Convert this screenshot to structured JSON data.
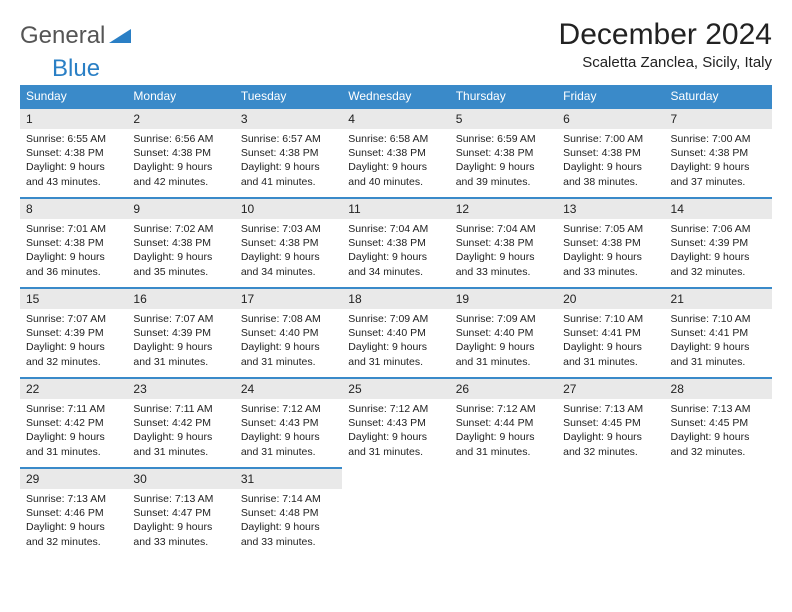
{
  "logo": {
    "part1": "General",
    "part2": "Blue"
  },
  "title": "December 2024",
  "location": "Scaletta Zanclea, Sicily, Italy",
  "colors": {
    "header_bg": "#3a8ac9",
    "header_text": "#ffffff",
    "daynum_bg": "#e9e9e9",
    "daynum_border": "#3a8ac9",
    "body_text": "#222222",
    "logo_blue": "#2a7fc5"
  },
  "day_headers": [
    "Sunday",
    "Monday",
    "Tuesday",
    "Wednesday",
    "Thursday",
    "Friday",
    "Saturday"
  ],
  "weeks": [
    [
      {
        "n": "1",
        "sr": "Sunrise: 6:55 AM",
        "ss": "Sunset: 4:38 PM",
        "dl1": "Daylight: 9 hours",
        "dl2": "and 43 minutes."
      },
      {
        "n": "2",
        "sr": "Sunrise: 6:56 AM",
        "ss": "Sunset: 4:38 PM",
        "dl1": "Daylight: 9 hours",
        "dl2": "and 42 minutes."
      },
      {
        "n": "3",
        "sr": "Sunrise: 6:57 AM",
        "ss": "Sunset: 4:38 PM",
        "dl1": "Daylight: 9 hours",
        "dl2": "and 41 minutes."
      },
      {
        "n": "4",
        "sr": "Sunrise: 6:58 AM",
        "ss": "Sunset: 4:38 PM",
        "dl1": "Daylight: 9 hours",
        "dl2": "and 40 minutes."
      },
      {
        "n": "5",
        "sr": "Sunrise: 6:59 AM",
        "ss": "Sunset: 4:38 PM",
        "dl1": "Daylight: 9 hours",
        "dl2": "and 39 minutes."
      },
      {
        "n": "6",
        "sr": "Sunrise: 7:00 AM",
        "ss": "Sunset: 4:38 PM",
        "dl1": "Daylight: 9 hours",
        "dl2": "and 38 minutes."
      },
      {
        "n": "7",
        "sr": "Sunrise: 7:00 AM",
        "ss": "Sunset: 4:38 PM",
        "dl1": "Daylight: 9 hours",
        "dl2": "and 37 minutes."
      }
    ],
    [
      {
        "n": "8",
        "sr": "Sunrise: 7:01 AM",
        "ss": "Sunset: 4:38 PM",
        "dl1": "Daylight: 9 hours",
        "dl2": "and 36 minutes."
      },
      {
        "n": "9",
        "sr": "Sunrise: 7:02 AM",
        "ss": "Sunset: 4:38 PM",
        "dl1": "Daylight: 9 hours",
        "dl2": "and 35 minutes."
      },
      {
        "n": "10",
        "sr": "Sunrise: 7:03 AM",
        "ss": "Sunset: 4:38 PM",
        "dl1": "Daylight: 9 hours",
        "dl2": "and 34 minutes."
      },
      {
        "n": "11",
        "sr": "Sunrise: 7:04 AM",
        "ss": "Sunset: 4:38 PM",
        "dl1": "Daylight: 9 hours",
        "dl2": "and 34 minutes."
      },
      {
        "n": "12",
        "sr": "Sunrise: 7:04 AM",
        "ss": "Sunset: 4:38 PM",
        "dl1": "Daylight: 9 hours",
        "dl2": "and 33 minutes."
      },
      {
        "n": "13",
        "sr": "Sunrise: 7:05 AM",
        "ss": "Sunset: 4:38 PM",
        "dl1": "Daylight: 9 hours",
        "dl2": "and 33 minutes."
      },
      {
        "n": "14",
        "sr": "Sunrise: 7:06 AM",
        "ss": "Sunset: 4:39 PM",
        "dl1": "Daylight: 9 hours",
        "dl2": "and 32 minutes."
      }
    ],
    [
      {
        "n": "15",
        "sr": "Sunrise: 7:07 AM",
        "ss": "Sunset: 4:39 PM",
        "dl1": "Daylight: 9 hours",
        "dl2": "and 32 minutes."
      },
      {
        "n": "16",
        "sr": "Sunrise: 7:07 AM",
        "ss": "Sunset: 4:39 PM",
        "dl1": "Daylight: 9 hours",
        "dl2": "and 31 minutes."
      },
      {
        "n": "17",
        "sr": "Sunrise: 7:08 AM",
        "ss": "Sunset: 4:40 PM",
        "dl1": "Daylight: 9 hours",
        "dl2": "and 31 minutes."
      },
      {
        "n": "18",
        "sr": "Sunrise: 7:09 AM",
        "ss": "Sunset: 4:40 PM",
        "dl1": "Daylight: 9 hours",
        "dl2": "and 31 minutes."
      },
      {
        "n": "19",
        "sr": "Sunrise: 7:09 AM",
        "ss": "Sunset: 4:40 PM",
        "dl1": "Daylight: 9 hours",
        "dl2": "and 31 minutes."
      },
      {
        "n": "20",
        "sr": "Sunrise: 7:10 AM",
        "ss": "Sunset: 4:41 PM",
        "dl1": "Daylight: 9 hours",
        "dl2": "and 31 minutes."
      },
      {
        "n": "21",
        "sr": "Sunrise: 7:10 AM",
        "ss": "Sunset: 4:41 PM",
        "dl1": "Daylight: 9 hours",
        "dl2": "and 31 minutes."
      }
    ],
    [
      {
        "n": "22",
        "sr": "Sunrise: 7:11 AM",
        "ss": "Sunset: 4:42 PM",
        "dl1": "Daylight: 9 hours",
        "dl2": "and 31 minutes."
      },
      {
        "n": "23",
        "sr": "Sunrise: 7:11 AM",
        "ss": "Sunset: 4:42 PM",
        "dl1": "Daylight: 9 hours",
        "dl2": "and 31 minutes."
      },
      {
        "n": "24",
        "sr": "Sunrise: 7:12 AM",
        "ss": "Sunset: 4:43 PM",
        "dl1": "Daylight: 9 hours",
        "dl2": "and 31 minutes."
      },
      {
        "n": "25",
        "sr": "Sunrise: 7:12 AM",
        "ss": "Sunset: 4:43 PM",
        "dl1": "Daylight: 9 hours",
        "dl2": "and 31 minutes."
      },
      {
        "n": "26",
        "sr": "Sunrise: 7:12 AM",
        "ss": "Sunset: 4:44 PM",
        "dl1": "Daylight: 9 hours",
        "dl2": "and 31 minutes."
      },
      {
        "n": "27",
        "sr": "Sunrise: 7:13 AM",
        "ss": "Sunset: 4:45 PM",
        "dl1": "Daylight: 9 hours",
        "dl2": "and 32 minutes."
      },
      {
        "n": "28",
        "sr": "Sunrise: 7:13 AM",
        "ss": "Sunset: 4:45 PM",
        "dl1": "Daylight: 9 hours",
        "dl2": "and 32 minutes."
      }
    ],
    [
      {
        "n": "29",
        "sr": "Sunrise: 7:13 AM",
        "ss": "Sunset: 4:46 PM",
        "dl1": "Daylight: 9 hours",
        "dl2": "and 32 minutes."
      },
      {
        "n": "30",
        "sr": "Sunrise: 7:13 AM",
        "ss": "Sunset: 4:47 PM",
        "dl1": "Daylight: 9 hours",
        "dl2": "and 33 minutes."
      },
      {
        "n": "31",
        "sr": "Sunrise: 7:14 AM",
        "ss": "Sunset: 4:48 PM",
        "dl1": "Daylight: 9 hours",
        "dl2": "and 33 minutes."
      },
      null,
      null,
      null,
      null
    ]
  ]
}
